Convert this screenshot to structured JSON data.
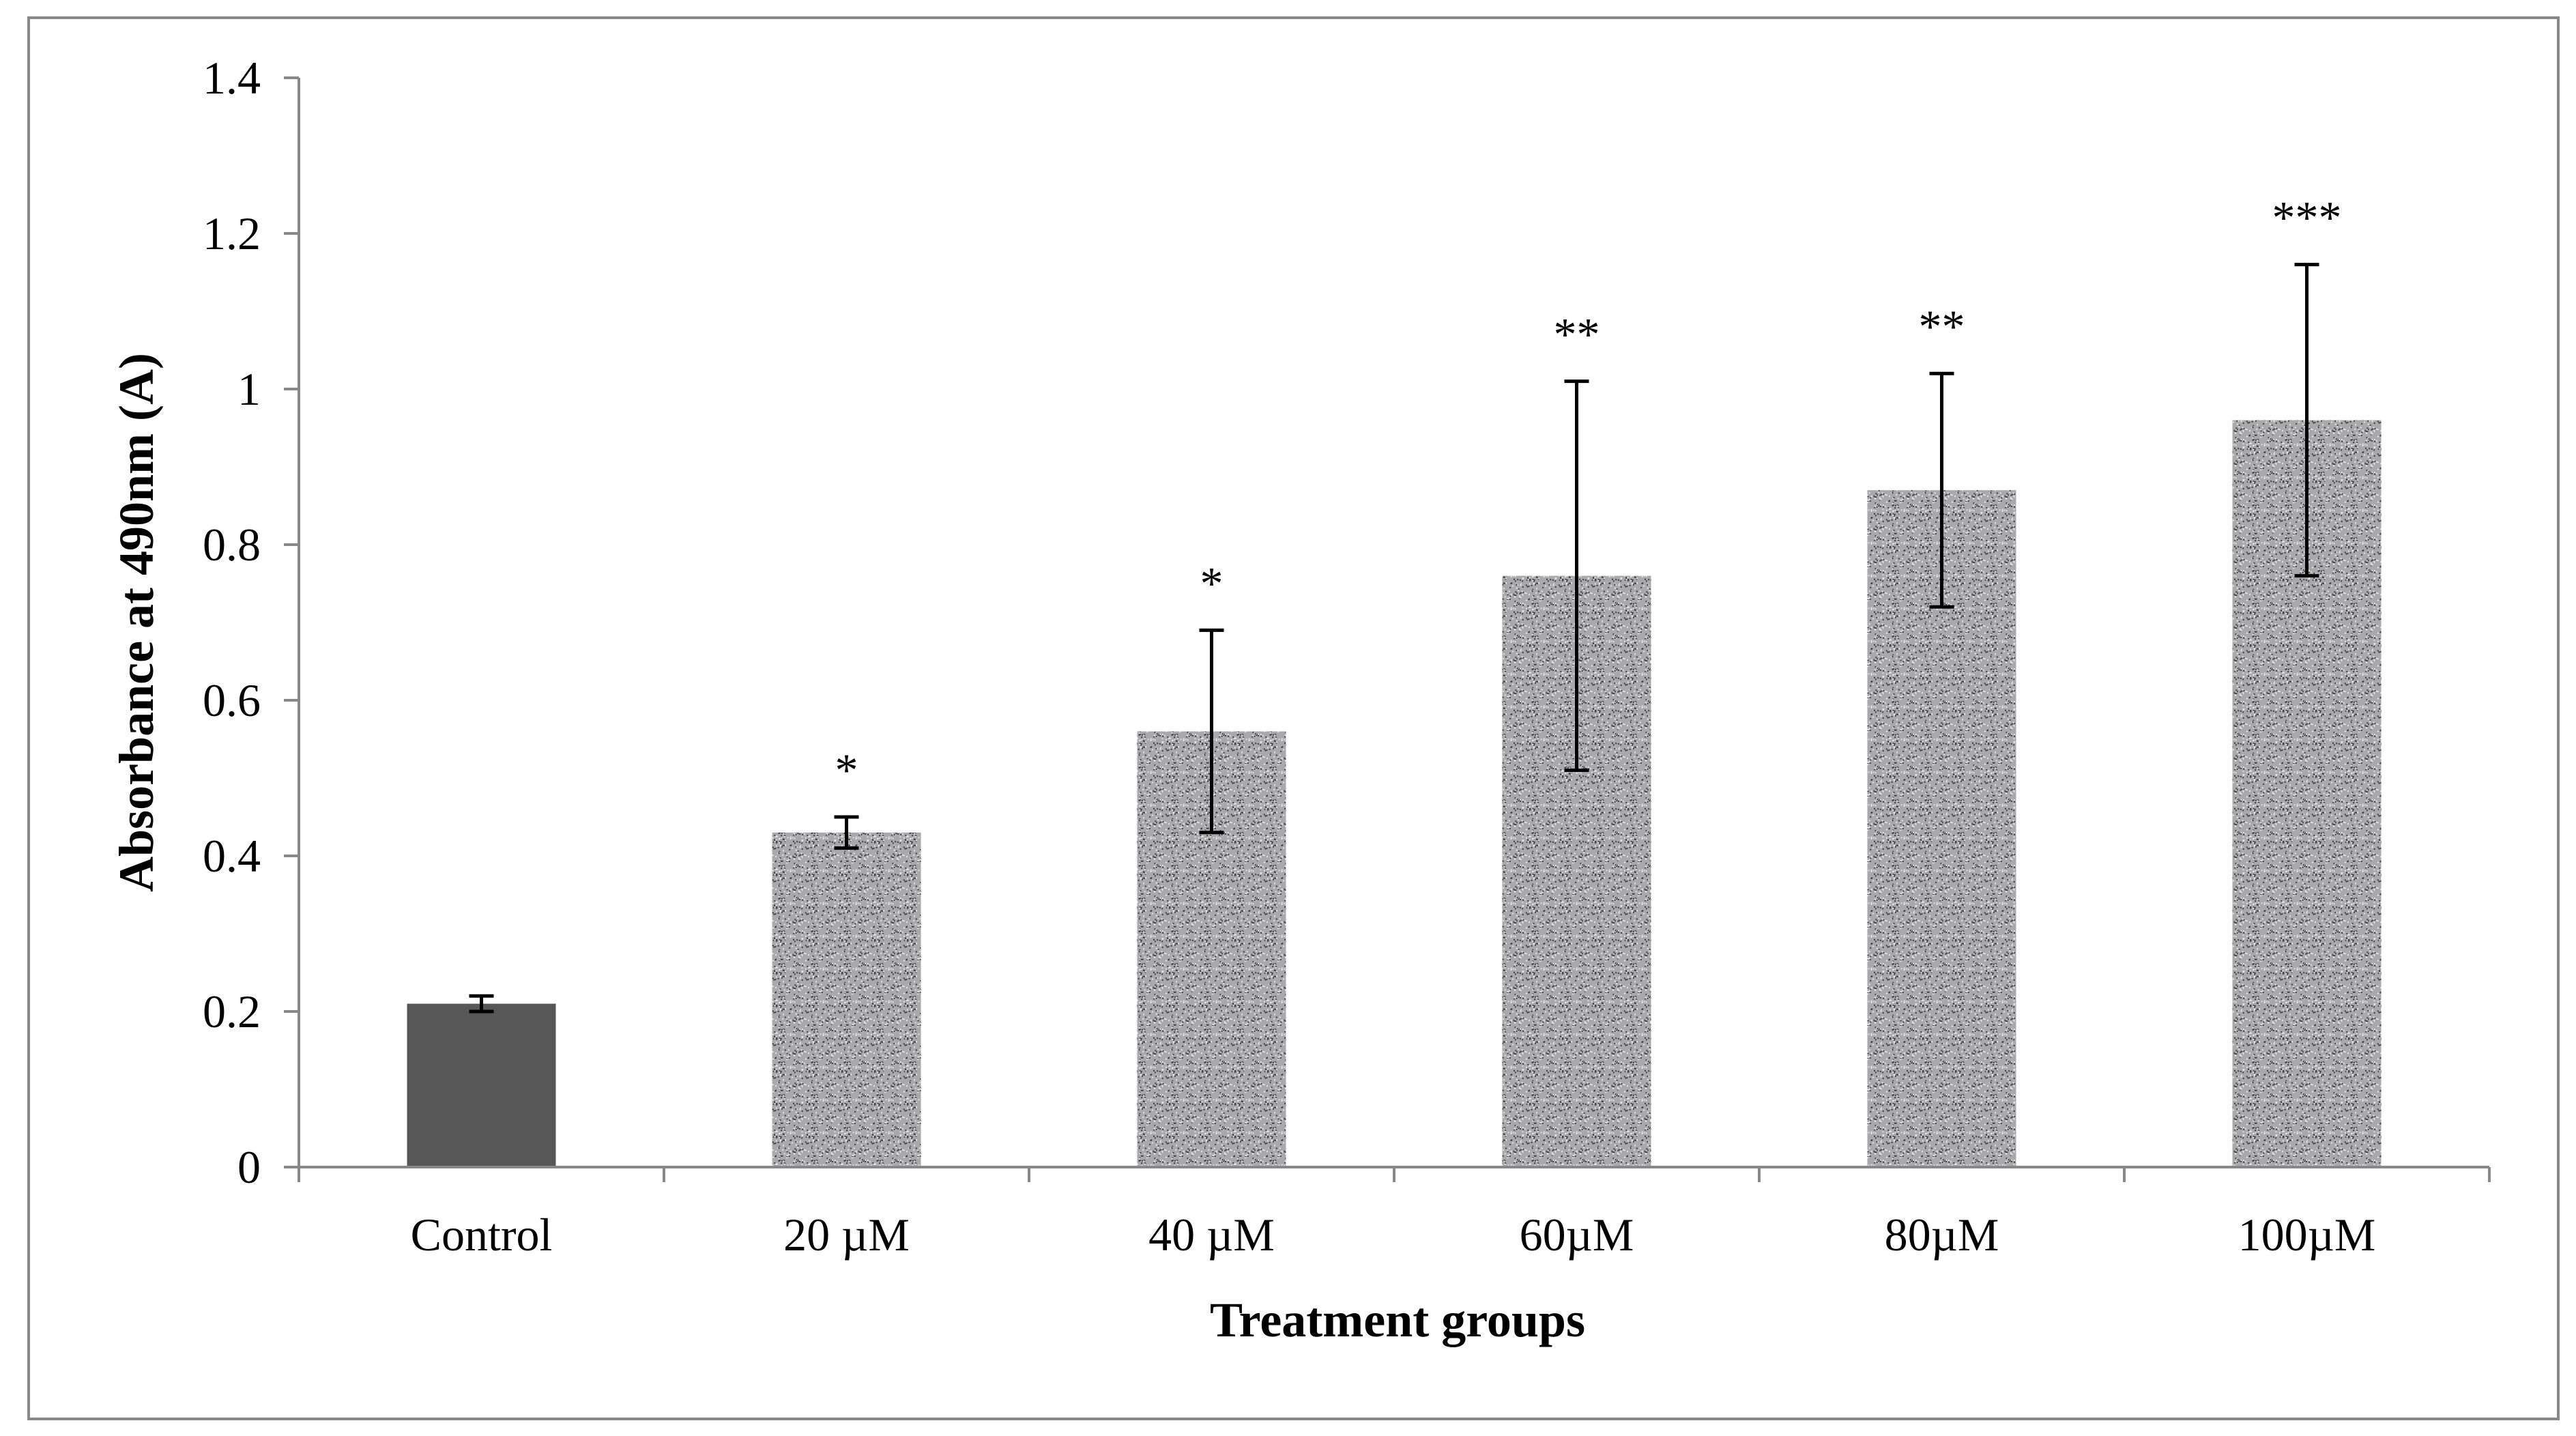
{
  "chart_data": {
    "type": "bar",
    "title": "",
    "xlabel": "Treatment groups",
    "ylabel": "Absorbance at 490nm (A)",
    "ylim": [
      0,
      1.4
    ],
    "yticks": [
      "0",
      "0.2",
      "0.4",
      "0.6",
      "0.8",
      "1",
      "1.2",
      "1.4"
    ],
    "ytick_values": [
      0,
      0.2,
      0.4,
      0.6,
      0.8,
      1.0,
      1.2,
      1.4
    ],
    "grid": false,
    "legend": "none",
    "categories": [
      "Control",
      "20 µM",
      "40 µM",
      "60µM",
      "80µM",
      "100µM"
    ],
    "values": [
      0.21,
      0.43,
      0.56,
      0.76,
      0.87,
      0.96
    ],
    "error_low": [
      0.2,
      0.41,
      0.43,
      0.51,
      0.72,
      0.76
    ],
    "error_high": [
      0.22,
      0.45,
      0.69,
      1.01,
      1.02,
      1.16
    ],
    "significance": [
      "",
      "*",
      "*",
      "**",
      "**",
      "***"
    ],
    "bar_fills": [
      "solid",
      "speckled",
      "speckled",
      "speckled",
      "speckled",
      "speckled"
    ],
    "colors": {
      "control_bar": "#575757",
      "speckle_base": "#a9a9ab",
      "speckle_dark": "#3f3f42",
      "speckle_light": "#e4e4e6",
      "axis": "#888888",
      "frame_border": "#888888",
      "error_bar": "#000000"
    }
  }
}
